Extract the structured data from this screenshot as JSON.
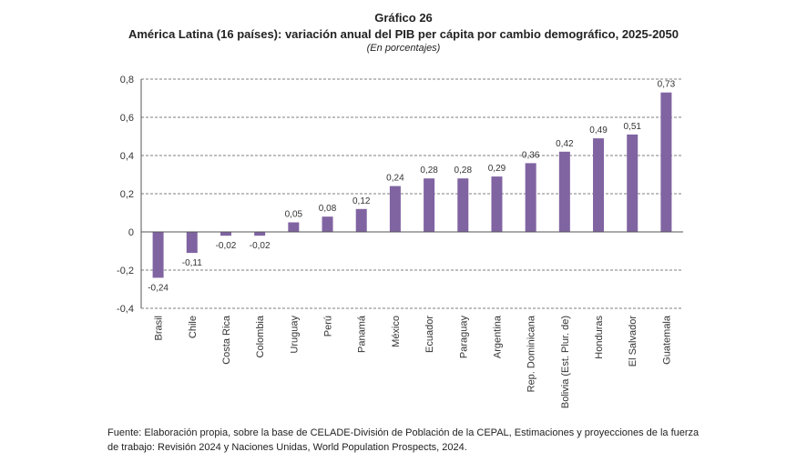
{
  "header": {
    "label": "Gráfico 26",
    "title": "América Latina (16 países): variación anual del PIB per cápita por cambio demográfico, 2025-2050",
    "subtitle": "(En porcentajes)"
  },
  "source": "Fuente: Elaboración propia, sobre la base de CELADE-División de Población de la CEPAL, Estimaciones y proyecciones de la fuerza de trabajo: Revisión 2024 y Naciones Unidas, World Population Prospects, 2024.",
  "colors": {
    "bar": "#8064a2",
    "grid": "#555555",
    "axis": "#555555"
  },
  "chart_data": {
    "type": "bar",
    "categories": [
      "Brasil",
      "Chile",
      "Costa Rica",
      "Colombia",
      "Uruguay",
      "Perú",
      "Panamá",
      "México",
      "Ecuador",
      "Paraguay",
      "Argentina",
      "Rep. Dominicana",
      "Bolivia (Est. Plur. de)",
      "Honduras",
      "El Salvador",
      "Guatemala"
    ],
    "values": [
      -0.24,
      -0.11,
      -0.02,
      -0.02,
      0.05,
      0.08,
      0.12,
      0.24,
      0.28,
      0.28,
      0.29,
      0.36,
      0.42,
      0.49,
      0.51,
      0.73
    ],
    "value_labels": [
      "-0,24",
      "-0,11",
      "-0,02",
      "-0,02",
      "0,05",
      "0,08",
      "0,12",
      "0,24",
      "0,28",
      "0,28",
      "0,29",
      "0,36",
      "0,42",
      "0,49",
      "0,51",
      "0,73"
    ],
    "ylim": [
      -0.4,
      0.8
    ],
    "yticks": [
      -0.4,
      -0.2,
      0,
      0.2,
      0.4,
      0.6,
      0.8
    ],
    "ytick_labels": [
      "-0,4",
      "-0,2",
      "0",
      "0,2",
      "0,4",
      "0,6",
      "0,8"
    ],
    "grid": "dashed horizontal",
    "legend": "none",
    "xlabel": "",
    "ylabel": ""
  }
}
